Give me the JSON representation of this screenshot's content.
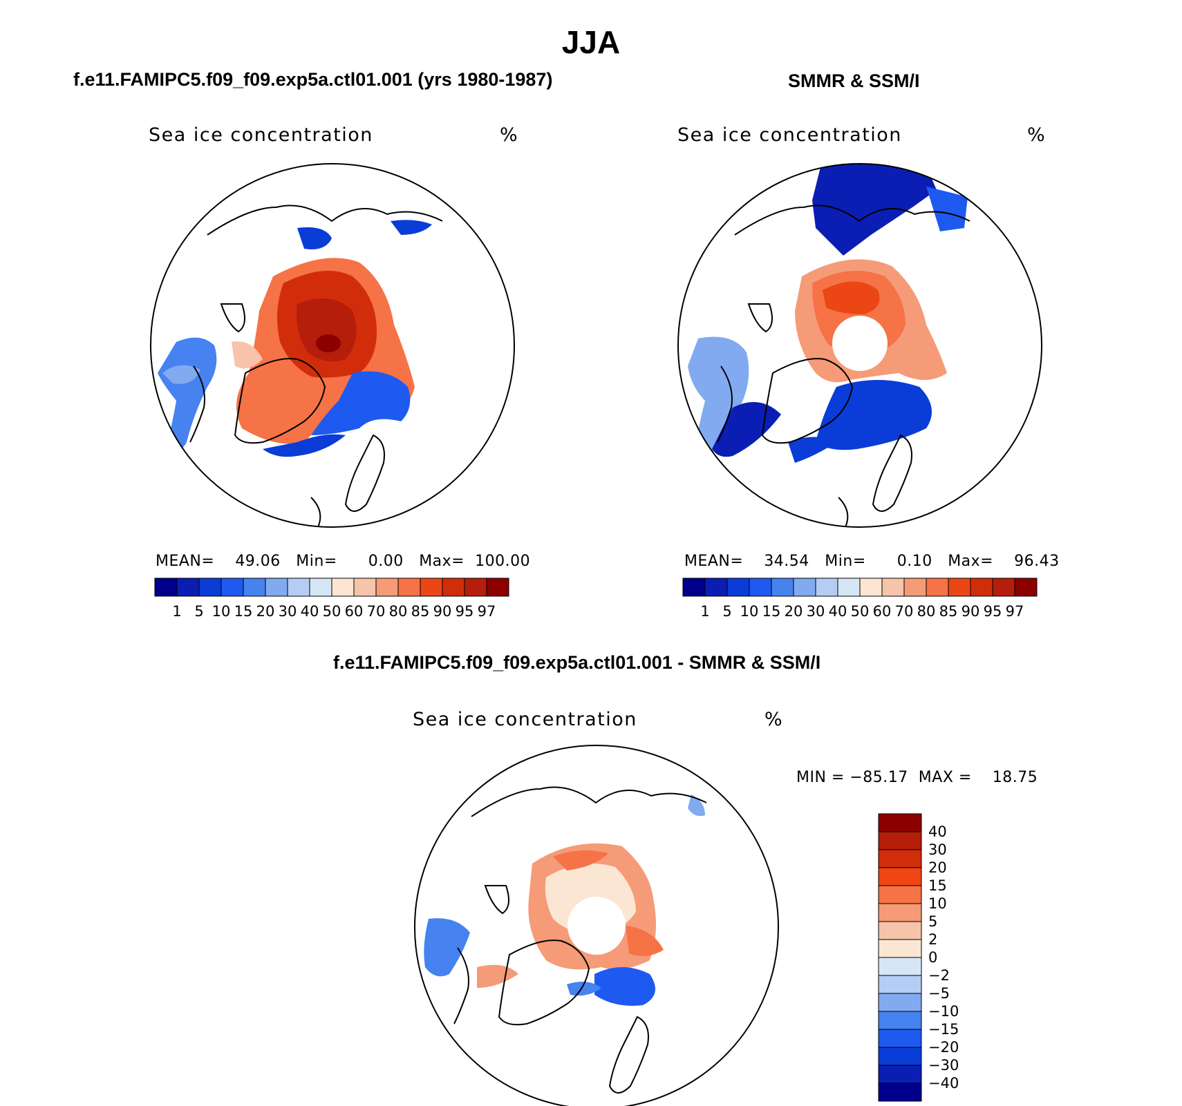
{
  "title": "JJA",
  "panels": [
    {
      "id": "model",
      "subtitle": "f.e11.FAMIPC5.f09_f09.exp5a.ctl01.001 (yrs 1980-1987)",
      "variable": "Sea ice concentration",
      "units": "%",
      "stats": {
        "mean_label": "MEAN=",
        "mean": "49.06",
        "min_label": "Min=",
        "min": "0.00",
        "max_label": "Max=",
        "max": "100.00"
      }
    },
    {
      "id": "obs",
      "subtitle": "SMMR & SSM/I",
      "variable": "Sea ice concentration",
      "units": "%",
      "stats": {
        "mean_label": "MEAN=",
        "mean": "34.54",
        "min_label": "Min=",
        "min": "0.10",
        "max_label": "Max=",
        "max": "96.43"
      }
    },
    {
      "id": "diff",
      "subtitle": "f.e11.FAMIPC5.f09_f09.exp5a.ctl01.001 - SMMR & SSM/I",
      "variable": "Sea ice concentration",
      "units": "%",
      "stats": {
        "min_label": "MIN =",
        "min": "−85.17",
        "max_label": "MAX =",
        "max": "18.75"
      }
    }
  ],
  "concentration_colorbar": {
    "labels": [
      "1",
      "5",
      "10",
      "15",
      "20",
      "30",
      "40",
      "50",
      "60",
      "70",
      "80",
      "85",
      "90",
      "95",
      "97"
    ],
    "colors": [
      "#00008c",
      "#0a1eb4",
      "#0a3cd7",
      "#1e5af0",
      "#4682f0",
      "#82aaf0",
      "#b4cdf5",
      "#d7e6f7",
      "#fae6d2",
      "#f7c3aa",
      "#f59b78",
      "#f57346",
      "#eb4614",
      "#d22d0a",
      "#b41e0a",
      "#8c0000"
    ]
  },
  "difference_colorbar": {
    "labels": [
      "40",
      "30",
      "20",
      "15",
      "10",
      "5",
      "2",
      "0",
      "−2",
      "−5",
      "−10",
      "−15",
      "−20",
      "−30",
      "−40"
    ],
    "colors": [
      "#8c0000",
      "#b41e0a",
      "#d22d0a",
      "#f04614",
      "#f57346",
      "#f59b78",
      "#f7c3aa",
      "#fae6d2",
      "#d7e6f7",
      "#b4cdf5",
      "#82aaf0",
      "#4682f0",
      "#1e5af0",
      "#0a3cd7",
      "#0a1eb4",
      "#00008c"
    ]
  }
}
